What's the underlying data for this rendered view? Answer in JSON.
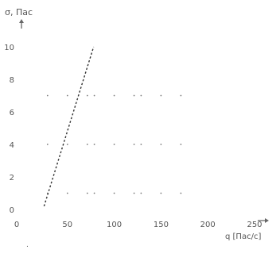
{
  "chart_data": {
    "type": "line",
    "title": "",
    "ylabel": "σ, Пас",
    "xlabel": "q [Пас/с]",
    "y_ticks": [
      "0",
      "2",
      "4",
      "6",
      "8",
      "10"
    ],
    "x_ticks": [
      "0",
      "50",
      "100",
      "150",
      "200",
      "250"
    ],
    "xlim": [
      0,
      250
    ],
    "ylim": [
      0,
      10
    ],
    "grid": "dotted",
    "series": [
      {
        "x": [
          25,
          78
        ],
        "y": [
          0.2,
          10
        ]
      }
    ],
    "grid_x": [
      50,
      100,
      150
    ],
    "grid_y": [
      1,
      4,
      7
    ]
  }
}
